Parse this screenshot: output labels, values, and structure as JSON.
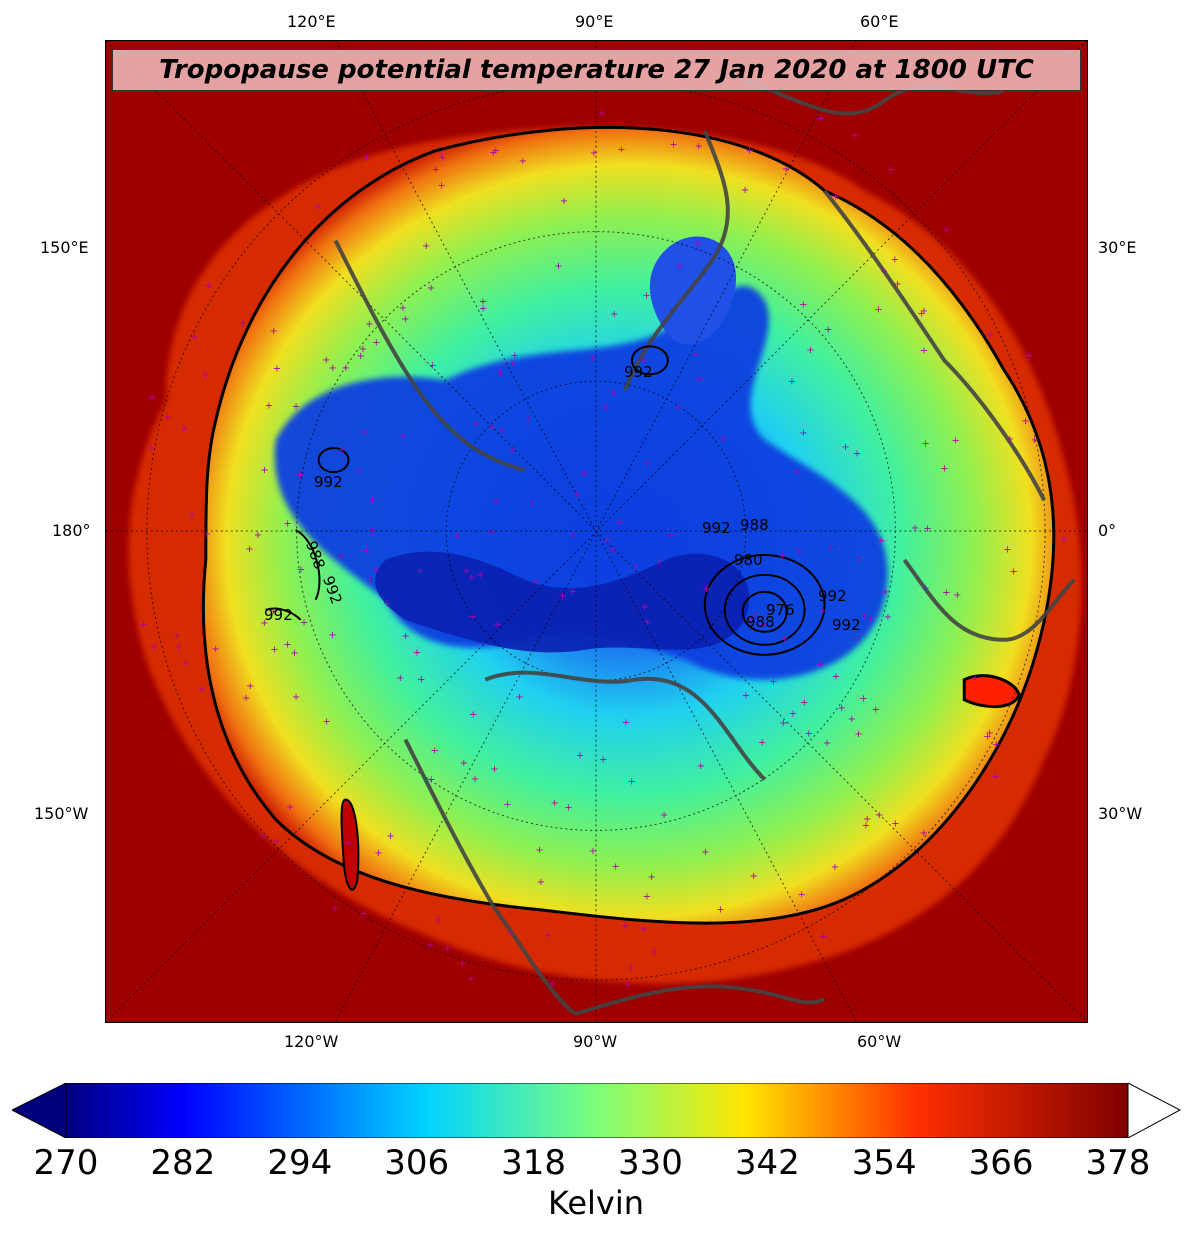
{
  "title": "Tropopause potential temperature 27 Jan 2020 at 1800 UTC",
  "top_lon_labels": [
    "120°E",
    "90°E",
    "60°E"
  ],
  "bottom_lon_labels": [
    "120°W",
    "90°W",
    "60°W"
  ],
  "left_lon_labels": [
    "150°E",
    "180°",
    "150°W"
  ],
  "right_lon_labels": [
    "30°E",
    "0°",
    "30°W"
  ],
  "contour_labels": [
    "992",
    "992",
    "992",
    "988",
    "992",
    "992",
    "992",
    "988",
    "980",
    "976",
    "992",
    "988"
  ],
  "colorbar": {
    "ticks": [
      "270",
      "282",
      "294",
      "306",
      "318",
      "330",
      "342",
      "354",
      "366",
      "378"
    ],
    "label": "Kelvin",
    "min": 270,
    "max": 380,
    "colormap": "jet",
    "extend": "both",
    "over_color": "#ffffff",
    "under_color": "#00007f"
  },
  "colors": {
    "land_outline": "#444444",
    "station_marker": "#b000b0",
    "contour": "#000000"
  }
}
